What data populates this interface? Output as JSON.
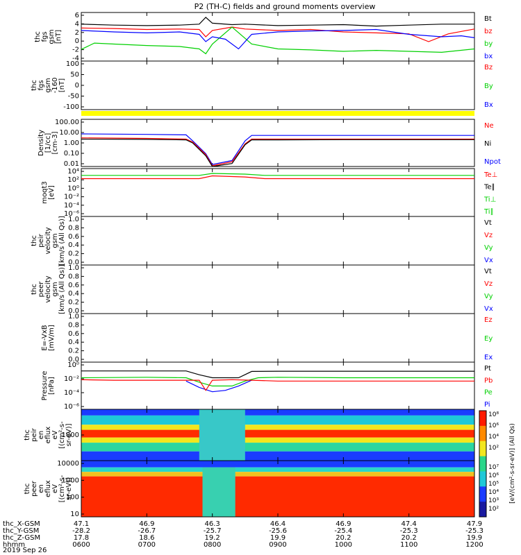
{
  "title": "P2 (TH-C) fields and ground moments overview",
  "date_label": "2019 Sep 26",
  "colors": {
    "black": "#000000",
    "red": "#ff0000",
    "green": "#00d000",
    "blue": "#0000ff",
    "yellow": "#ffff00"
  },
  "chart_data": {
    "type": "line",
    "time_ticks": [
      "0600",
      "0700",
      "0800",
      "0900",
      "1000",
      "1100",
      "1200"
    ],
    "coord_rows": [
      {
        "label": "thc_X-GSM",
        "values": [
          "47.1",
          "46.9",
          "46.3",
          "46.4",
          "46.9",
          "47.4",
          "47.9"
        ]
      },
      {
        "label": "thc_Y-GSM",
        "values": [
          "-28.2",
          "-26.7",
          "-25.7",
          "-25.6",
          "-25.4",
          "-25.3",
          "-25.3"
        ]
      },
      {
        "label": "thc_Z-GSM",
        "values": [
          "17.8",
          "18.6",
          "19.2",
          "19.9",
          "20.2",
          "20.2",
          "19.9"
        ]
      },
      {
        "label": "hhmm",
        "values": [
          "0600",
          "0700",
          "0800",
          "0900",
          "1000",
          "1100",
          "1200"
        ]
      }
    ],
    "panels": [
      {
        "id": "fgs",
        "ylabel_lines": [
          "thc",
          "fgs",
          "gsm",
          "[nT]"
        ],
        "yticks": [
          "6",
          "4",
          "2",
          "0",
          "-2",
          "-4"
        ],
        "legend": [
          {
            "text": "Bt",
            "color": "black"
          },
          {
            "text": "bz",
            "color": "red"
          },
          {
            "text": "by",
            "color": "green"
          },
          {
            "text": "bx",
            "color": "blue"
          }
        ],
        "ylim": [
          -4,
          6
        ],
        "series": [
          {
            "name": "Bt",
            "color": "black",
            "x": [
              6.0,
              6.5,
              7.0,
              7.5,
              7.8,
              7.9,
              8.0,
              8.3,
              8.5,
              9.0,
              9.5,
              10.0,
              10.5,
              11.0,
              11.5,
              12.0
            ],
            "y": [
              3.6,
              3.4,
              3.3,
              3.4,
              3.6,
              5.0,
              3.8,
              3.5,
              3.6,
              3.3,
              3.4,
              3.5,
              3.2,
              3.4,
              3.6,
              3.6
            ]
          },
          {
            "name": "bz",
            "color": "red",
            "x": [
              6.0,
              6.5,
              7.0,
              7.5,
              7.8,
              7.9,
              8.0,
              8.3,
              8.5,
              9.0,
              9.5,
              10.0,
              10.5,
              11.0,
              11.3,
              11.6,
              12.0
            ],
            "y": [
              2.8,
              2.7,
              2.5,
              2.6,
              2.5,
              1.0,
              2.3,
              3.0,
              2.6,
              2.3,
              2.5,
              2.0,
              1.8,
              1.6,
              0.0,
              1.6,
              2.6
            ]
          },
          {
            "name": "by",
            "color": "green",
            "x": [
              6.0,
              6.2,
              6.5,
              7.0,
              7.5,
              7.8,
              7.9,
              8.0,
              8.3,
              8.6,
              9.0,
              9.5,
              10.0,
              10.5,
              11.0,
              11.5,
              12.0
            ],
            "y": [
              -1.6,
              -0.3,
              -0.5,
              -0.8,
              -1.0,
              -1.5,
              -2.5,
              -0.5,
              3.0,
              -0.5,
              -1.5,
              -1.7,
              -2.0,
              -1.8,
              -2.0,
              -2.2,
              -1.5
            ]
          },
          {
            "name": "bx",
            "color": "blue",
            "x": [
              6.0,
              6.5,
              7.0,
              7.5,
              7.8,
              7.9,
              8.0,
              8.2,
              8.4,
              8.6,
              9.0,
              9.5,
              10.0,
              10.5,
              11.0,
              11.5,
              11.8,
              12.0
            ],
            "y": [
              2.3,
              2.0,
              1.8,
              2.0,
              1.5,
              0.0,
              1.0,
              0.5,
              -1.5,
              1.5,
              2.0,
              2.2,
              2.3,
              2.5,
              1.5,
              1.0,
              1.2,
              0.8
            ]
          }
        ]
      },
      {
        "id": "fgs_dsl",
        "ylabel_lines": [
          "thc",
          "fgs",
          "gsm",
          "-160",
          "[nT]"
        ],
        "yticks": [
          "100",
          "50",
          "0",
          "-50",
          "-100"
        ],
        "legend": [
          {
            "text": "Bz",
            "color": "red"
          },
          {
            "text": "By",
            "color": "green"
          },
          {
            "text": "Bx",
            "color": "blue"
          }
        ],
        "series": []
      },
      {
        "id": "density",
        "ylabel_lines": [
          "Density",
          "[1/cc]",
          "[cm-3]"
        ],
        "yticks": [
          "100.00",
          "10.00",
          "1.00",
          "0.10",
          "0.01"
        ],
        "legend": [
          {
            "text": "Ne",
            "color": "red"
          },
          {
            "text": "Ni",
            "color": "black"
          },
          {
            "text": "Npot",
            "color": "blue"
          }
        ],
        "log": true,
        "ylim": [
          0.005,
          300
        ],
        "series": [
          {
            "name": "Npot",
            "color": "blue",
            "x": [
              6.0,
              7.0,
              7.6,
              7.7,
              7.9,
              8.0,
              8.3,
              8.5,
              8.6,
              9.0,
              10.0,
              11.0,
              12.0
            ],
            "y": [
              10,
              9,
              8,
              2,
              0.1,
              0.008,
              0.02,
              2,
              7,
              7,
              7,
              7,
              7
            ]
          },
          {
            "name": "Ne",
            "color": "red",
            "x": [
              6.0,
              7.0,
              7.6,
              7.7,
              7.9,
              8.0,
              8.3,
              8.5,
              8.6,
              9.0,
              10.0,
              11.0,
              12.0
            ],
            "y": [
              4,
              3.5,
              3,
              1.5,
              0.08,
              0.006,
              0.015,
              1,
              3,
              3,
              3,
              3,
              3
            ]
          },
          {
            "name": "Ni",
            "color": "black",
            "x": [
              6.0,
              7.0,
              7.6,
              7.7,
              7.9,
              8.0,
              8.3,
              8.5,
              8.6,
              9.0,
              10.0,
              11.0,
              12.0
            ],
            "y": [
              3,
              2.8,
              2.5,
              1.2,
              0.06,
              0.005,
              0.01,
              0.8,
              2.5,
              2.5,
              2.6,
              2.6,
              2.6
            ]
          }
        ]
      },
      {
        "id": "temperature",
        "ylabel_lines": [
          "moqt3",
          "[eV]"
        ],
        "yticks": [
          "10⁴",
          "10²",
          "10⁰",
          "10⁻²",
          "10⁻⁴",
          "10⁻⁶"
        ],
        "legend": [
          {
            "text": "Te⊥",
            "color": "red"
          },
          {
            "text": "Te∥",
            "color": "black"
          },
          {
            "text": "Ti⊥",
            "color": "green"
          },
          {
            "text": "Ti∥",
            "color": "green"
          }
        ],
        "log": true,
        "ylim": [
          1e-07,
          100000.0
        ],
        "series": [
          {
            "name": "Ti⊥",
            "color": "green",
            "x": [
              6.0,
              7.5,
              7.8,
              8.0,
              8.5,
              8.8,
              10.0,
              12.0
            ],
            "y": [
              2000,
              2000,
              2000,
              6000,
              4000,
              2000,
              2000,
              2000
            ]
          },
          {
            "name": "Te⊥",
            "color": "red",
            "x": [
              6.0,
              7.5,
              7.8,
              8.0,
              8.5,
              8.8,
              10.0,
              12.0
            ],
            "y": [
              300,
              300,
              300,
              1500,
              800,
              300,
              300,
              300
            ]
          }
        ]
      },
      {
        "id": "vi",
        "ylabel_lines": [
          "thc",
          "peir",
          "velocity",
          "gsm",
          "[km/s (All Qs)]"
        ],
        "yticks": [
          "1.0",
          "0.8",
          "0.6",
          "0.4",
          "0.2",
          "0.0"
        ],
        "legend": [
          {
            "text": "Vt",
            "color": "black"
          },
          {
            "text": "Vz",
            "color": "red"
          },
          {
            "text": "Vy",
            "color": "green"
          },
          {
            "text": "Vx",
            "color": "blue"
          }
        ],
        "series": []
      },
      {
        "id": "ve",
        "ylabel_lines": [
          "thc",
          "peer",
          "velocity",
          "gsm",
          "[km/s (All Qs)]"
        ],
        "yticks": [
          "1.0",
          "0.8",
          "0.6",
          "0.4",
          "0.2",
          "0.0"
        ],
        "legend": [
          {
            "text": "Vt",
            "color": "black"
          },
          {
            "text": "Vz",
            "color": "red"
          },
          {
            "text": "Vy",
            "color": "green"
          },
          {
            "text": "Vx",
            "color": "blue"
          }
        ],
        "series": []
      },
      {
        "id": "efield",
        "ylabel_lines": [
          "E=-VxB",
          "[mV/m]"
        ],
        "yticks": [
          "1.0",
          "0.8",
          "0.6",
          "0.4",
          "0.2",
          "0.0"
        ],
        "legend": [
          {
            "text": "Ez",
            "color": "red"
          },
          {
            "text": "Ey",
            "color": "green"
          },
          {
            "text": "Ex",
            "color": "blue"
          }
        ],
        "series": []
      },
      {
        "id": "pressure",
        "ylabel_lines": [
          "Pressure",
          "[nPa]"
        ],
        "yticks": [
          "10⁰",
          "10⁻²",
          "10⁻⁴",
          "10⁻⁶"
        ],
        "legend": [
          {
            "text": "Pt",
            "color": "black"
          },
          {
            "text": "Pb",
            "color": "red"
          },
          {
            "text": "Pe",
            "color": "green"
          },
          {
            "text": "Pi",
            "color": "blue"
          }
        ],
        "log": true,
        "ylim": [
          1e-07,
          3
        ],
        "series": [
          {
            "name": "Pt",
            "color": "black",
            "x": [
              6.0,
              7.0,
              7.6,
              7.8,
              8.0,
              8.4,
              8.6,
              9.0,
              10.0,
              11.0,
              12.0
            ],
            "y": [
              0.12,
              0.12,
              0.12,
              0.03,
              0.01,
              0.01,
              0.1,
              0.11,
              0.11,
              0.11,
              0.11
            ]
          },
          {
            "name": "Pe",
            "color": "green",
            "x": [
              6.0,
              7.0,
              7.6,
              7.8,
              8.0,
              8.3,
              8.5,
              8.7,
              9.0,
              10.0,
              11.0,
              12.0
            ],
            "y": [
              0.01,
              0.012,
              0.01,
              0.002,
              0.0005,
              0.0005,
              0.003,
              0.01,
              0.012,
              0.01,
              0.01,
              0.01
            ]
          },
          {
            "name": "Pi",
            "color": "blue",
            "x": [
              7.6,
              7.8,
              8.0,
              8.2,
              8.4,
              8.6
            ],
            "y": [
              0.003,
              0.0003,
              6e-05,
              0.0001,
              0.0005,
              0.004
            ]
          },
          {
            "name": "Pb",
            "color": "red",
            "x": [
              6.0,
              6.5,
              7.0,
              7.5,
              7.8,
              7.9,
              8.0,
              8.3,
              8.6,
              9.0,
              9.5,
              10.0,
              10.5,
              11.0,
              11.5,
              12.0
            ],
            "y": [
              0.005,
              0.004,
              0.004,
              0.004,
              0.004,
              0.0001,
              0.004,
              0.005,
              0.004,
              0.003,
              0.003,
              0.003,
              0.003,
              0.003,
              0.003,
              0.003
            ]
          }
        ]
      },
      {
        "id": "ion_spec",
        "ylabel_lines": [
          "thc",
          "peir",
          "en",
          "eflux",
          "eV",
          "[(cm²-s-",
          "sr-eV)]"
        ],
        "yticks": [
          "1000"
        ],
        "legend": [],
        "series": []
      },
      {
        "id": "ele_spec",
        "ylabel_lines": [
          "thc",
          "peer",
          "en",
          "eflux",
          "eV",
          "[(cm²-s-",
          "sr-eV)]"
        ],
        "yticks": [
          "10000",
          "1000",
          "100",
          "10"
        ],
        "legend": [],
        "series": []
      }
    ],
    "colorbar_ticks_top": [
      "10⁸",
      "10⁶",
      "10⁴",
      "10²"
    ],
    "colorbar_ticks_bottom": [
      "10⁷",
      "10⁶",
      "10⁵",
      "10⁴",
      "10³",
      "10²"
    ],
    "colorbar_label": "[eV/(cm²-s-sr-eV)] (All Qs)"
  }
}
